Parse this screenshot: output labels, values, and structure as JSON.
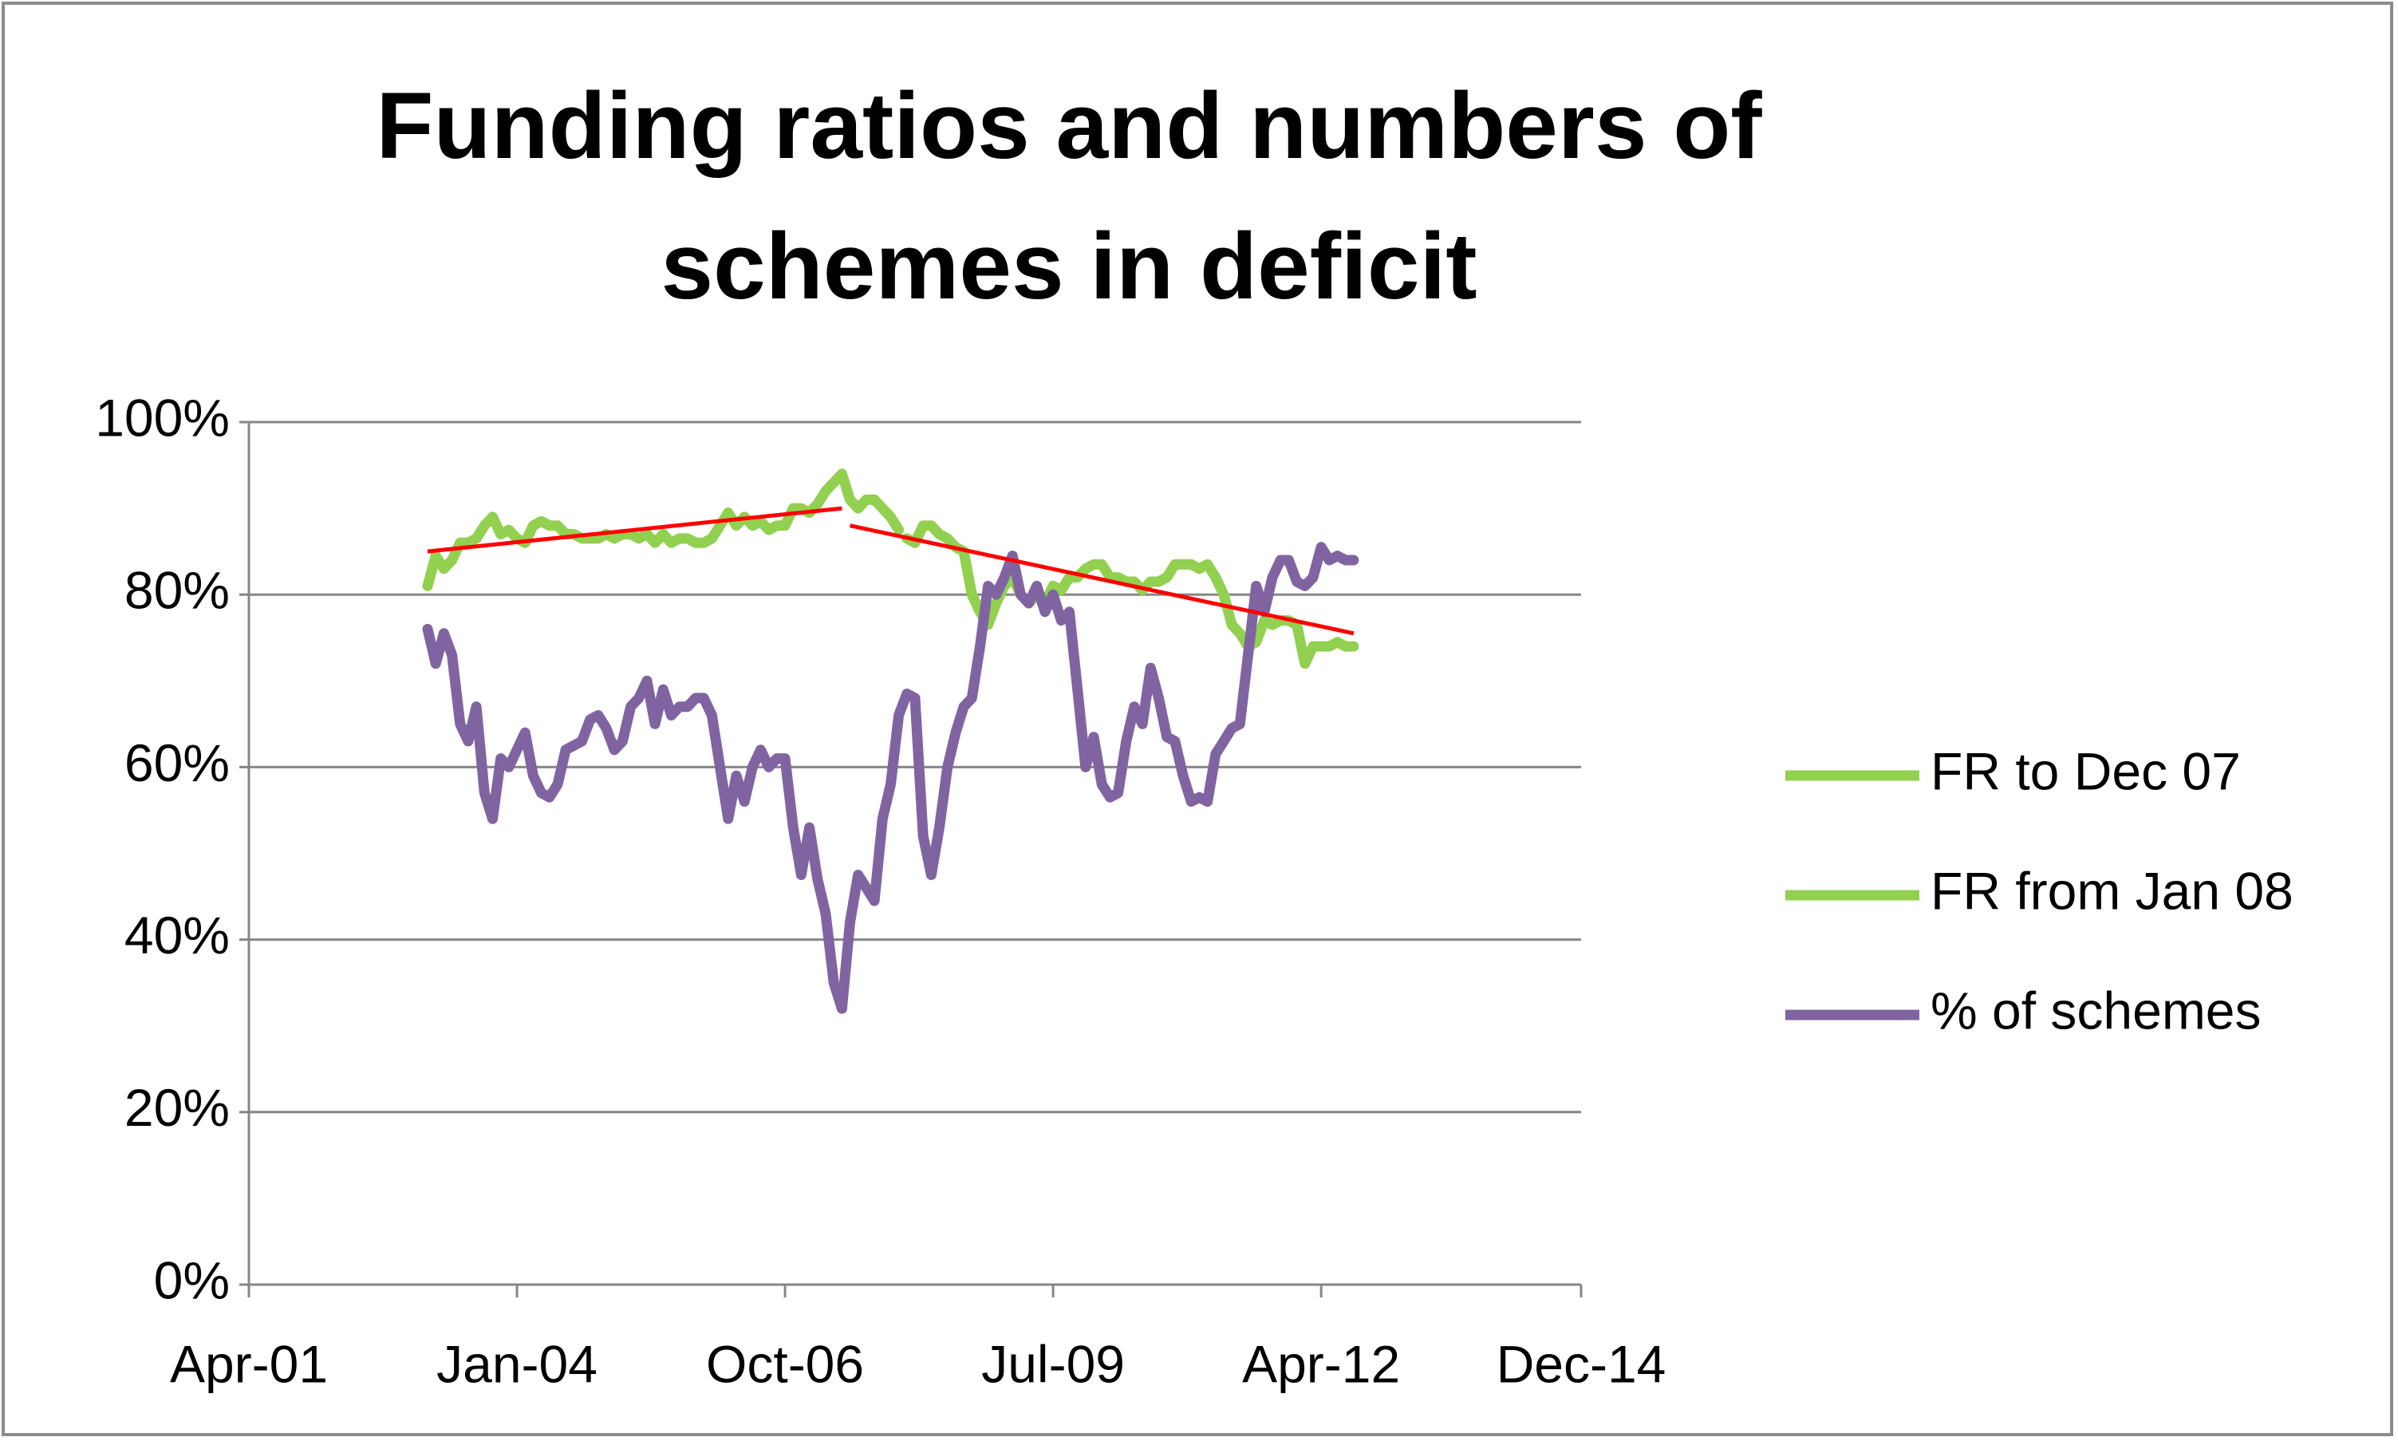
{
  "chart_data": {
    "type": "line",
    "title": "Funding ratios and numbers of schemes in deficit",
    "x": [
      "2003-02",
      "2003-03",
      "2003-04",
      "2003-05",
      "2003-06",
      "2003-07",
      "2003-08",
      "2003-09",
      "2003-10",
      "2003-11",
      "2003-12",
      "2004-01",
      "2004-02",
      "2004-03",
      "2004-04",
      "2004-05",
      "2004-06",
      "2004-07",
      "2004-08",
      "2004-09",
      "2004-10",
      "2004-11",
      "2004-12",
      "2005-01",
      "2005-02",
      "2005-03",
      "2005-04",
      "2005-05",
      "2005-06",
      "2005-07",
      "2005-08",
      "2005-09",
      "2005-10",
      "2005-11",
      "2005-12",
      "2006-01",
      "2006-02",
      "2006-03",
      "2006-04",
      "2006-05",
      "2006-06",
      "2006-07",
      "2006-08",
      "2006-09",
      "2006-10",
      "2006-11",
      "2006-12",
      "2007-01",
      "2007-02",
      "2007-03",
      "2007-04",
      "2007-05",
      "2007-06",
      "2007-07",
      "2007-08",
      "2007-09",
      "2007-10",
      "2007-11",
      "2007-12",
      "2008-01",
      "2008-02",
      "2008-03",
      "2008-04",
      "2008-05",
      "2008-06",
      "2008-07",
      "2008-08",
      "2008-09",
      "2008-10",
      "2008-11",
      "2008-12",
      "2009-01",
      "2009-02",
      "2009-03",
      "2009-04",
      "2009-05",
      "2009-06",
      "2009-07",
      "2009-08",
      "2009-09",
      "2009-10",
      "2009-11",
      "2009-12",
      "2010-01",
      "2010-02",
      "2010-03",
      "2010-04",
      "2010-05",
      "2010-06",
      "2010-07",
      "2010-08",
      "2010-09",
      "2010-10",
      "2010-11",
      "2010-12",
      "2011-01",
      "2011-02",
      "2011-03",
      "2011-04",
      "2011-05",
      "2011-06",
      "2011-07",
      "2011-08",
      "2011-09",
      "2011-10",
      "2011-11",
      "2011-12",
      "2012-01",
      "2012-02",
      "2012-03",
      "2012-04",
      "2012-05",
      "2012-06",
      "2012-07",
      "2012-08"
    ],
    "series": [
      {
        "name": "FR to Dec 07",
        "color": "#92d050",
        "values": [
          81,
          84.5,
          83,
          84,
          86,
          86,
          86.5,
          88,
          89,
          87,
          87.5,
          86.5,
          86,
          88,
          88.5,
          88,
          88,
          87,
          87,
          86.5,
          86.5,
          86.5,
          87,
          86.5,
          87,
          87,
          86.5,
          87,
          86,
          87,
          86,
          86.5,
          86.5,
          86,
          86,
          86.5,
          88,
          89.5,
          88,
          89,
          88,
          88.5,
          87.5,
          88,
          88,
          90,
          90,
          89.5,
          90.5,
          92,
          93,
          94,
          91,
          90,
          91,
          91,
          90,
          89,
          87.5,
          null,
          null,
          null,
          null,
          null,
          null,
          null,
          null,
          null,
          null,
          null,
          null,
          null,
          null,
          null,
          null,
          null,
          null,
          null,
          null,
          null,
          null,
          null,
          null,
          null,
          null,
          null,
          null,
          null,
          null,
          null,
          null,
          null,
          null,
          null,
          null,
          null,
          null,
          null,
          null,
          null,
          null,
          null,
          null,
          null,
          null,
          null,
          null,
          null,
          null,
          null,
          null,
          null,
          null,
          null,
          null
        ]
      },
      {
        "name": "FR from Jan 08",
        "color": "#92d050",
        "values": [
          null,
          null,
          null,
          null,
          null,
          null,
          null,
          null,
          null,
          null,
          null,
          null,
          null,
          null,
          null,
          null,
          null,
          null,
          null,
          null,
          null,
          null,
          null,
          null,
          null,
          null,
          null,
          null,
          null,
          null,
          null,
          null,
          null,
          null,
          null,
          null,
          null,
          null,
          null,
          null,
          null,
          null,
          null,
          null,
          null,
          null,
          null,
          null,
          null,
          null,
          null,
          null,
          null,
          null,
          null,
          null,
          null,
          null,
          null,
          86.5,
          86,
          88,
          88,
          87,
          86.5,
          85.5,
          85,
          80,
          78,
          76.5,
          79,
          81,
          82,
          80,
          79,
          80,
          79,
          81,
          80.5,
          82,
          82,
          83,
          83.5,
          83.5,
          82,
          82,
          81.5,
          81.5,
          80.5,
          81.5,
          81.5,
          82,
          83.5,
          83.5,
          83.5,
          83,
          83.5,
          82,
          80,
          76.5,
          75.5,
          74,
          74.5,
          77,
          76.5,
          77,
          77,
          76.5,
          72,
          74,
          74,
          74,
          74.5,
          74,
          74
        ]
      },
      {
        "name": "% of schemes",
        "color": "#8064a2",
        "values": [
          76,
          72,
          75.5,
          73,
          65,
          63,
          67,
          57,
          54,
          61,
          60,
          62,
          64,
          59,
          57,
          56.5,
          58,
          62,
          62.5,
          63,
          65.5,
          66,
          64.5,
          62,
          63,
          67,
          68,
          70,
          65,
          69,
          66,
          67,
          67,
          68,
          68,
          66,
          60,
          54,
          59,
          56,
          60,
          62,
          60,
          61,
          61,
          53,
          47.5,
          53,
          47,
          43,
          35,
          32,
          42,
          47.5,
          46,
          44.5,
          54,
          58,
          66,
          68.5,
          68,
          52,
          47.5,
          53,
          60,
          64,
          67,
          68,
          74,
          81,
          80,
          82,
          84.5,
          80,
          79,
          81,
          78,
          80,
          77,
          78,
          69,
          60,
          63.5,
          58,
          56.5,
          57,
          63,
          67,
          65,
          71.5,
          68,
          63.5,
          63,
          59,
          56,
          56.5,
          56,
          61.5,
          63,
          64.5,
          65,
          73,
          81,
          78,
          82,
          84,
          84,
          81.5,
          81,
          82,
          85.5,
          84,
          84.5,
          84,
          84
        ]
      }
    ],
    "trendlines": [
      {
        "color": "#ff0000",
        "x": [
          "2003-02",
          "2007-05"
        ],
        "values": [
          85,
          90
        ]
      },
      {
        "color": "#ff0000",
        "x": [
          "2007-06",
          "2012-08"
        ],
        "values": [
          88,
          75.5
        ]
      }
    ],
    "xlim": [
      "2001-04",
      "2014-12"
    ],
    "xticks": [
      {
        "value": "2001-04",
        "label": "Apr-01"
      },
      {
        "value": "2004-01",
        "label": "Jan-04"
      },
      {
        "value": "2006-10",
        "label": "Oct-06"
      },
      {
        "value": "2009-07",
        "label": "Jul-09"
      },
      {
        "value": "2012-04",
        "label": "Apr-12"
      },
      {
        "value": "2014-12",
        "label": "Dec-14"
      }
    ],
    "ylim": [
      0,
      100
    ],
    "yticks": [
      {
        "value": 0,
        "label": "0%"
      },
      {
        "value": 20,
        "label": "20%"
      },
      {
        "value": 40,
        "label": "40%"
      },
      {
        "value": 60,
        "label": "60%"
      },
      {
        "value": 80,
        "label": "80%"
      },
      {
        "value": 100,
        "label": "100%"
      }
    ],
    "grid": true,
    "legend": "right"
  }
}
